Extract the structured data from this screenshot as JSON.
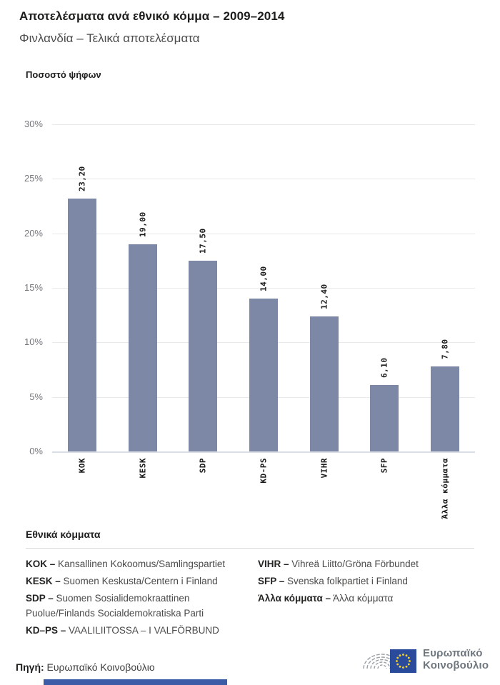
{
  "chart_data": {
    "type": "bar",
    "title": "Αποτελέσματα ανά εθνικό κόμμα – 2009–2014",
    "subtitle": "Φινλανδία – Τελικά αποτελέσματα",
    "ylabel": "Ποσοστό ψήφων",
    "xlabel": "",
    "categories": [
      "KOK",
      "KESK",
      "SDP",
      "KD-PS",
      "VIHR",
      "SFP",
      "Άλλα κόμματα"
    ],
    "values": [
      23.2,
      19.0,
      17.5,
      14.0,
      12.4,
      6.1,
      7.8
    ],
    "value_labels": [
      "23,20",
      "19,00",
      "17,50",
      "14,00",
      "12,40",
      "6,10",
      "7,80"
    ],
    "y_tick_values": [
      0,
      5,
      10,
      15,
      20,
      25,
      30
    ],
    "y_tick_labels": [
      "0%",
      "5%",
      "10%",
      "15%",
      "20%",
      "25%",
      "30%"
    ],
    "ylim": [
      0,
      30
    ],
    "grid": true,
    "legend_position": "bottom",
    "bar_color": "#7c88a5"
  },
  "legend": {
    "heading": "Εθνικά κόμματα",
    "items": [
      {
        "code": "KOK –",
        "name": "Kansallinen Kokoomus/Samlingspartiet"
      },
      {
        "code": "KESK –",
        "name": "Suomen Keskusta/Centern i Finland"
      },
      {
        "code": "SDP –",
        "name": "Suomen Sosialidemokraattinen Puolue/Finlands Socialdemokratiska Parti"
      },
      {
        "code": "KD–PS –",
        "name": "VAALILIITOSSA – I VALFÖRBUND"
      },
      {
        "code": "VIHR –",
        "name": "Vihreä Liitto/Gröna Förbundet"
      },
      {
        "code": "SFP –",
        "name": "Svenska folkpartiet i Finland"
      },
      {
        "code": "Άλλα κόμματα –",
        "name": "Άλλα κόμματα"
      }
    ]
  },
  "footer": {
    "source_label": "Πηγή:",
    "source_text": " Ευρωπαϊκό Κοινοβούλιο",
    "logo_line1": "Ευρωπαϊκό",
    "logo_line2": "Κοινοβούλιο"
  },
  "colors": {
    "bar": "#7c88a5",
    "gridline": "#e9e9e9",
    "axis_line": "#d9dde6",
    "eu_blue": "#2a4b9b",
    "star_yellow": "#ffd617",
    "logo_gray": "#9aa0a6"
  }
}
